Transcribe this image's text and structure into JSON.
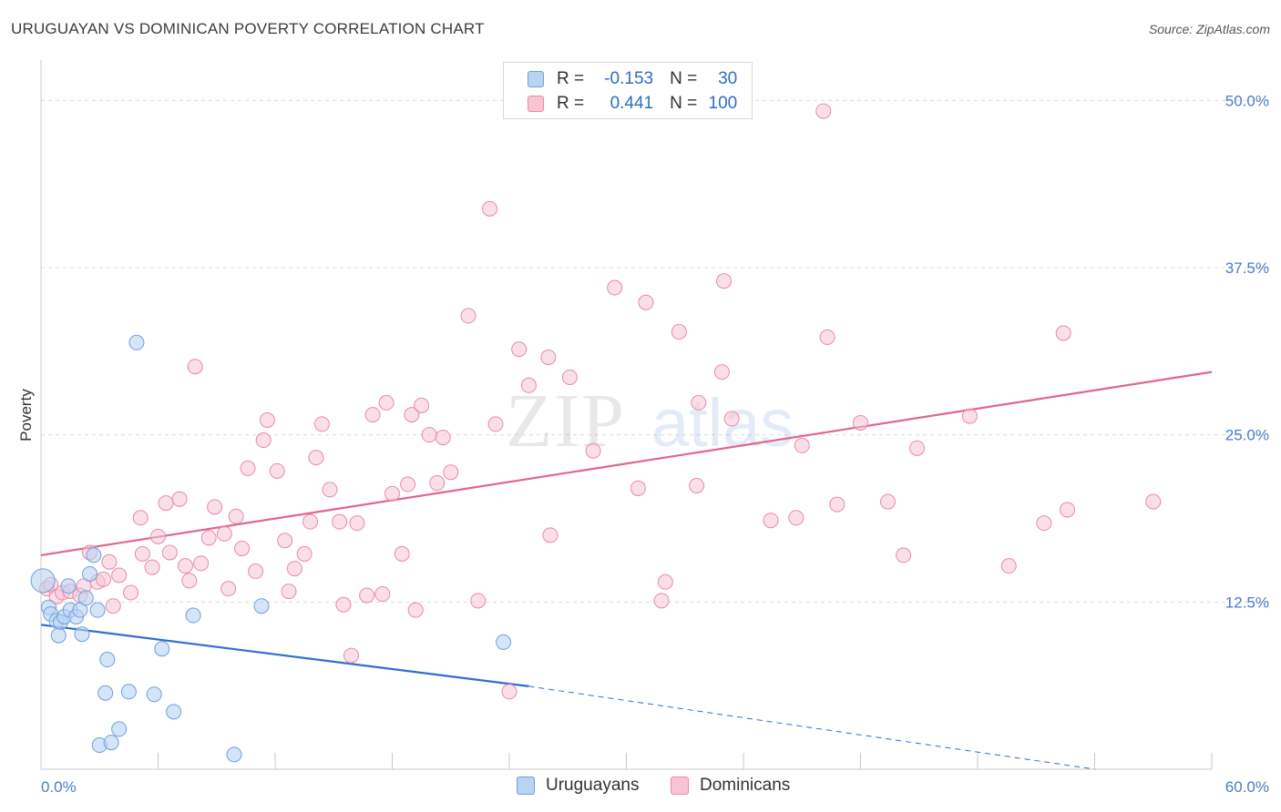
{
  "header": {
    "title": "URUGUAYAN VS DOMINICAN POVERTY CORRELATION CHART",
    "source": "Source: ZipAtlas.com"
  },
  "legend": {
    "rows": [
      {
        "r_label": "R =",
        "r_value": "-0.153",
        "n_label": "N =",
        "n_value": "30",
        "color": "#6f9fdc"
      },
      {
        "r_label": "R =",
        "r_value": "0.441",
        "n_label": "N =",
        "n_value": "100",
        "color": "#e88aa8"
      }
    ]
  },
  "bottom_legend": {
    "uruguayans": "Uruguayans",
    "dominicans": "Dominicans"
  },
  "colors": {
    "blue_fill": "#b9d3f3",
    "blue_stroke": "#6f9fdc",
    "blue_line": "#2f6ed0",
    "pink_fill": "#f8c4d4",
    "pink_stroke": "#e88aa8",
    "pink_line": "#e0668f",
    "tick_text": "#4a7cc9"
  },
  "chart_data": {
    "type": "scatter",
    "title": "URUGUAYAN VS DOMINICAN POVERTY CORRELATION CHART",
    "xlabel": "",
    "ylabel": "Poverty",
    "xlim": [
      0,
      60
    ],
    "ylim": [
      0,
      50
    ],
    "x_tick_labels": [
      "0.0%",
      "60.0%"
    ],
    "y_tick_values": [
      12.5,
      25.0,
      37.5,
      50.0
    ],
    "y_tick_labels": [
      "12.5%",
      "25.0%",
      "37.5%",
      "50.0%"
    ],
    "grid": true,
    "legend_placement": "top-center",
    "series": [
      {
        "name": "Uruguayans",
        "r": -0.153,
        "n": 30,
        "trend": {
          "x0": 0,
          "y0": 10.8,
          "x1": 25,
          "y1": 6.2,
          "dashed_to_x": 54,
          "dashed_to_y": 0
        },
        "points": [
          [
            0.1,
            14.1
          ],
          [
            0.4,
            12.1
          ],
          [
            0.5,
            11.6
          ],
          [
            0.8,
            11.1
          ],
          [
            0.9,
            10.0
          ],
          [
            1.0,
            11.0
          ],
          [
            1.2,
            11.4
          ],
          [
            1.4,
            13.7
          ],
          [
            1.5,
            11.9
          ],
          [
            1.8,
            11.4
          ],
          [
            2.0,
            11.9
          ],
          [
            2.1,
            10.1
          ],
          [
            2.3,
            12.8
          ],
          [
            2.5,
            14.6
          ],
          [
            2.7,
            16.0
          ],
          [
            2.9,
            11.9
          ],
          [
            3.0,
            1.8
          ],
          [
            3.3,
            5.7
          ],
          [
            3.4,
            8.2
          ],
          [
            3.6,
            2.0
          ],
          [
            4.0,
            3.0
          ],
          [
            4.5,
            5.8
          ],
          [
            4.9,
            31.9
          ],
          [
            5.8,
            5.6
          ],
          [
            6.2,
            9.0
          ],
          [
            6.8,
            4.3
          ],
          [
            7.8,
            11.5
          ],
          [
            9.9,
            1.1
          ],
          [
            11.3,
            12.2
          ],
          [
            23.7,
            9.5
          ]
        ]
      },
      {
        "name": "Dominicans",
        "r": 0.441,
        "n": 100,
        "trend": {
          "x0": 0,
          "y0": 16.0,
          "x1": 60,
          "y1": 29.7
        },
        "points": [
          [
            0.3,
            13.5
          ],
          [
            0.5,
            13.8
          ],
          [
            0.8,
            12.9
          ],
          [
            1.1,
            13.2
          ],
          [
            1.5,
            13.3
          ],
          [
            2.0,
            13.0
          ],
          [
            2.2,
            13.7
          ],
          [
            2.5,
            16.2
          ],
          [
            2.9,
            14.0
          ],
          [
            3.2,
            14.2
          ],
          [
            3.5,
            15.5
          ],
          [
            3.7,
            12.2
          ],
          [
            4.0,
            14.5
          ],
          [
            4.6,
            13.2
          ],
          [
            5.1,
            18.8
          ],
          [
            5.2,
            16.1
          ],
          [
            5.7,
            15.1
          ],
          [
            6.0,
            17.4
          ],
          [
            6.4,
            19.9
          ],
          [
            6.6,
            16.2
          ],
          [
            7.1,
            20.2
          ],
          [
            7.4,
            15.2
          ],
          [
            7.6,
            14.1
          ],
          [
            7.9,
            30.1
          ],
          [
            8.2,
            15.4
          ],
          [
            8.6,
            17.3
          ],
          [
            8.9,
            19.6
          ],
          [
            9.4,
            17.6
          ],
          [
            9.6,
            13.5
          ],
          [
            10.0,
            18.9
          ],
          [
            10.3,
            16.5
          ],
          [
            10.6,
            22.5
          ],
          [
            11.0,
            14.8
          ],
          [
            11.4,
            24.6
          ],
          [
            11.6,
            26.1
          ],
          [
            12.1,
            22.3
          ],
          [
            12.5,
            17.1
          ],
          [
            12.7,
            13.3
          ],
          [
            13.0,
            15.0
          ],
          [
            13.5,
            16.1
          ],
          [
            13.8,
            18.5
          ],
          [
            14.1,
            23.3
          ],
          [
            14.4,
            25.8
          ],
          [
            14.8,
            20.9
          ],
          [
            15.3,
            18.5
          ],
          [
            15.5,
            12.3
          ],
          [
            15.9,
            8.5
          ],
          [
            16.2,
            18.4
          ],
          [
            16.7,
            13.0
          ],
          [
            17.0,
            26.5
          ],
          [
            17.5,
            13.1
          ],
          [
            17.7,
            27.4
          ],
          [
            18.0,
            20.6
          ],
          [
            18.5,
            16.1
          ],
          [
            18.8,
            21.3
          ],
          [
            19.0,
            26.5
          ],
          [
            19.2,
            11.9
          ],
          [
            19.5,
            27.2
          ],
          [
            19.9,
            25.0
          ],
          [
            20.3,
            21.4
          ],
          [
            20.6,
            24.8
          ],
          [
            21.0,
            22.2
          ],
          [
            21.9,
            33.9
          ],
          [
            22.4,
            12.6
          ],
          [
            23.0,
            41.9
          ],
          [
            23.3,
            25.8
          ],
          [
            24.0,
            5.8
          ],
          [
            24.5,
            31.4
          ],
          [
            25.0,
            28.7
          ],
          [
            26.0,
            30.8
          ],
          [
            26.1,
            17.5
          ],
          [
            27.1,
            29.3
          ],
          [
            28.3,
            23.8
          ],
          [
            29.4,
            36.0
          ],
          [
            30.6,
            21.0
          ],
          [
            31.0,
            34.9
          ],
          [
            31.8,
            12.6
          ],
          [
            32.0,
            14.0
          ],
          [
            32.7,
            32.7
          ],
          [
            33.6,
            21.2
          ],
          [
            33.7,
            27.4
          ],
          [
            34.9,
            29.7
          ],
          [
            35.0,
            36.5
          ],
          [
            35.4,
            26.2
          ],
          [
            37.4,
            18.6
          ],
          [
            38.7,
            18.8
          ],
          [
            39.0,
            24.2
          ],
          [
            40.1,
            49.2
          ],
          [
            40.3,
            32.3
          ],
          [
            40.8,
            19.8
          ],
          [
            42.0,
            25.9
          ],
          [
            43.4,
            20.0
          ],
          [
            44.2,
            16.0
          ],
          [
            44.9,
            24.0
          ],
          [
            47.6,
            26.4
          ],
          [
            49.6,
            15.2
          ],
          [
            51.4,
            18.4
          ],
          [
            52.4,
            32.6
          ],
          [
            52.6,
            19.4
          ],
          [
            57.0,
            20.0
          ]
        ]
      }
    ]
  }
}
